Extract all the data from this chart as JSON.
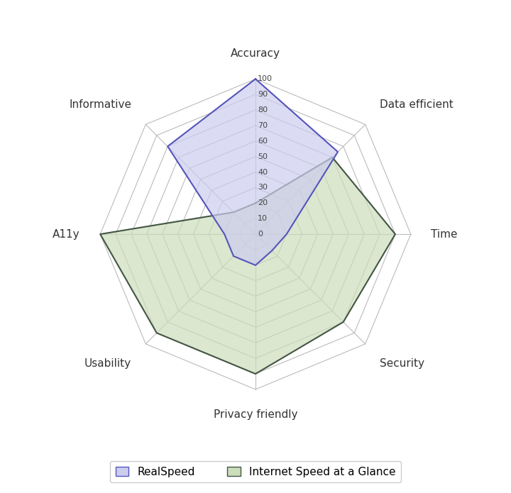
{
  "categories": [
    "Accuracy",
    "Data efficient",
    "Time",
    "Security",
    "Privacy friendly",
    "Usability",
    "A11y",
    "Informative"
  ],
  "realspeed": [
    100,
    75,
    20,
    15,
    20,
    20,
    20,
    80
  ],
  "internet_speed": [
    20,
    70,
    90,
    80,
    90,
    90,
    100,
    20
  ],
  "realspeed_line_color": "#5555bb",
  "realspeed_fill_color": "#ccccee",
  "internet_line_color": "#445544",
  "internet_fill_color": "#ccddbb",
  "grid_color": "#bbbbbb",
  "label_color": "#333333",
  "tick_color": "#444444",
  "r_ticks": [
    0,
    10,
    20,
    30,
    40,
    50,
    60,
    70,
    80,
    90,
    100
  ],
  "r_max": 100,
  "legend_realspeed": "RealSpeed",
  "legend_internet": "Internet Speed at a Glance",
  "figsize": [
    7.2,
    6.95
  ],
  "dpi": 100
}
